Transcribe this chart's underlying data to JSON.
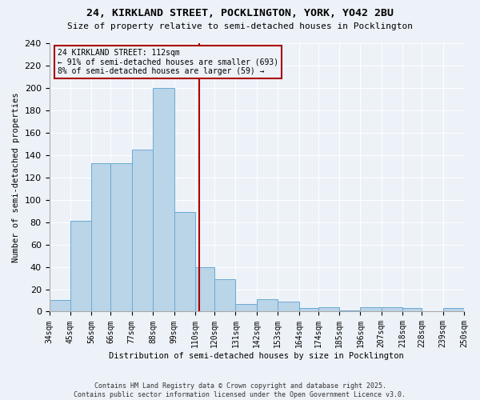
{
  "title": "24, KIRKLAND STREET, POCKLINGTON, YORK, YO42 2BU",
  "subtitle": "Size of property relative to semi-detached houses in Pocklington",
  "xlabel": "Distribution of semi-detached houses by size in Pocklington",
  "ylabel": "Number of semi-detached properties",
  "bin_heights": [
    10,
    81,
    133,
    133,
    145,
    200,
    89,
    40,
    29,
    7,
    11,
    9,
    3,
    4,
    1,
    4,
    4,
    3,
    0,
    3
  ],
  "bin_edges": [
    34,
    45,
    56,
    66,
    77,
    88,
    99,
    110,
    120,
    131,
    142,
    153,
    164,
    174,
    185,
    196,
    207,
    218,
    228,
    239,
    250
  ],
  "bar_color": "#bad4e8",
  "bar_edge_color": "#6aaad4",
  "vline_x": 112,
  "vline_color": "#aa0000",
  "annotation_title": "24 KIRKLAND STREET: 112sqm",
  "annotation_line1": "← 91% of semi-detached houses are smaller (693)",
  "annotation_line2": "8% of semi-detached houses are larger (59) →",
  "annotation_box_color": "#aa0000",
  "ylim": [
    0,
    240
  ],
  "yticks": [
    0,
    20,
    40,
    60,
    80,
    100,
    120,
    140,
    160,
    180,
    200,
    220,
    240
  ],
  "background_color": "#edf2f8",
  "grid_color": "#ffffff",
  "footer": "Contains HM Land Registry data © Crown copyright and database right 2025.\nContains public sector information licensed under the Open Government Licence v3.0."
}
